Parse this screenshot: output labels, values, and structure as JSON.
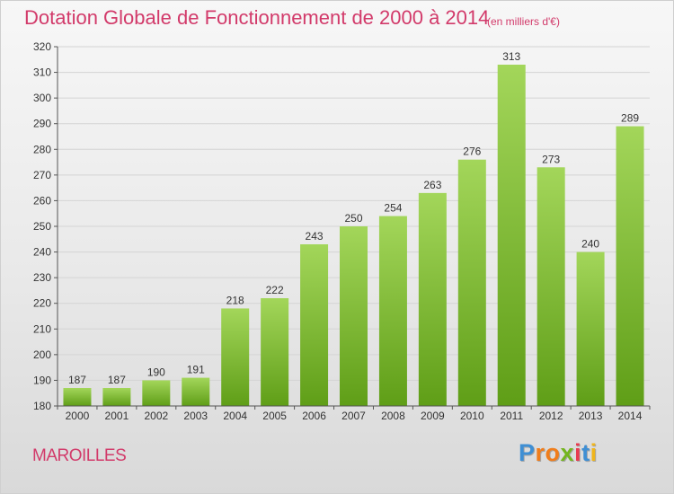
{
  "header": {
    "title": "Dotation Globale de Fonctionnement de 2000 à 2014",
    "subtitle": "(en milliers d'€)"
  },
  "footer": {
    "place": "MAROILLES",
    "logo": {
      "letters": [
        "P",
        "r",
        "o",
        "x",
        "i",
        "t",
        "i"
      ],
      "colors": [
        "#3f8fd4",
        "#f07d1b",
        "#f07d1b",
        "#74b51f",
        "#e83a4f",
        "#3f8fd4",
        "#f0b51b"
      ]
    }
  },
  "colors": {
    "bar_light": "#a3d65a",
    "bar_dark": "#5f9e17",
    "title": "#d23a6a",
    "grid": "#d4d4d4"
  },
  "chart_data": {
    "type": "bar",
    "categories": [
      "2000",
      "2001",
      "2002",
      "2003",
      "2004",
      "2005",
      "2006",
      "2007",
      "2008",
      "2009",
      "2010",
      "2011",
      "2012",
      "2013",
      "2014"
    ],
    "values": [
      187,
      187,
      190,
      191,
      218,
      222,
      243,
      250,
      254,
      263,
      276,
      313,
      273,
      240,
      289
    ],
    "title": "Dotation Globale de Fonctionnement de 2000 à 2014",
    "unit": "(en milliers d'€)",
    "ylim": [
      180,
      320
    ],
    "yticks": [
      180,
      190,
      200,
      210,
      220,
      230,
      240,
      250,
      260,
      270,
      280,
      290,
      300,
      310,
      320
    ],
    "grid": true,
    "data_labels": true
  }
}
